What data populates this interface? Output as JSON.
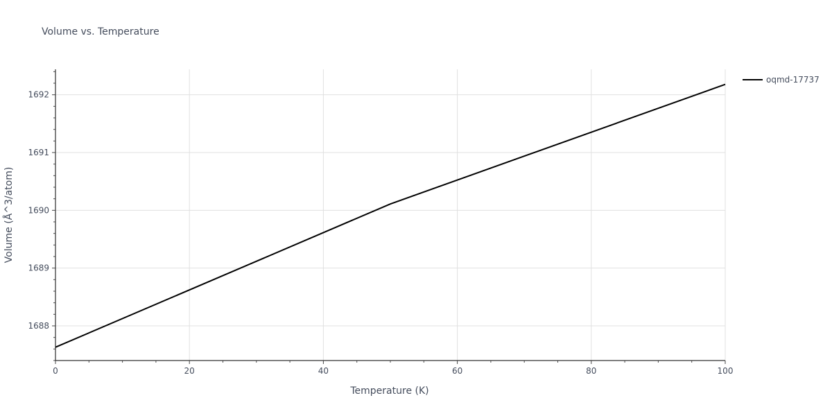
{
  "chart_data": {
    "type": "line",
    "title": "Volume vs. Temperature",
    "xlabel": "Temperature (K)",
    "ylabel": "Volume (Å^3/atom)",
    "xlim": [
      0,
      100
    ],
    "ylim": [
      1687.4,
      1692.44
    ],
    "x_ticks": [
      0,
      20,
      40,
      60,
      80,
      100
    ],
    "y_ticks": [
      1688,
      1689,
      1690,
      1691,
      1692
    ],
    "grid": true,
    "legend_position": "top-right",
    "series": [
      {
        "name": "oqmd-17737",
        "color": "#000000",
        "x": [
          0,
          50,
          100
        ],
        "y": [
          1687.63,
          1690.11,
          1692.18
        ]
      }
    ]
  }
}
